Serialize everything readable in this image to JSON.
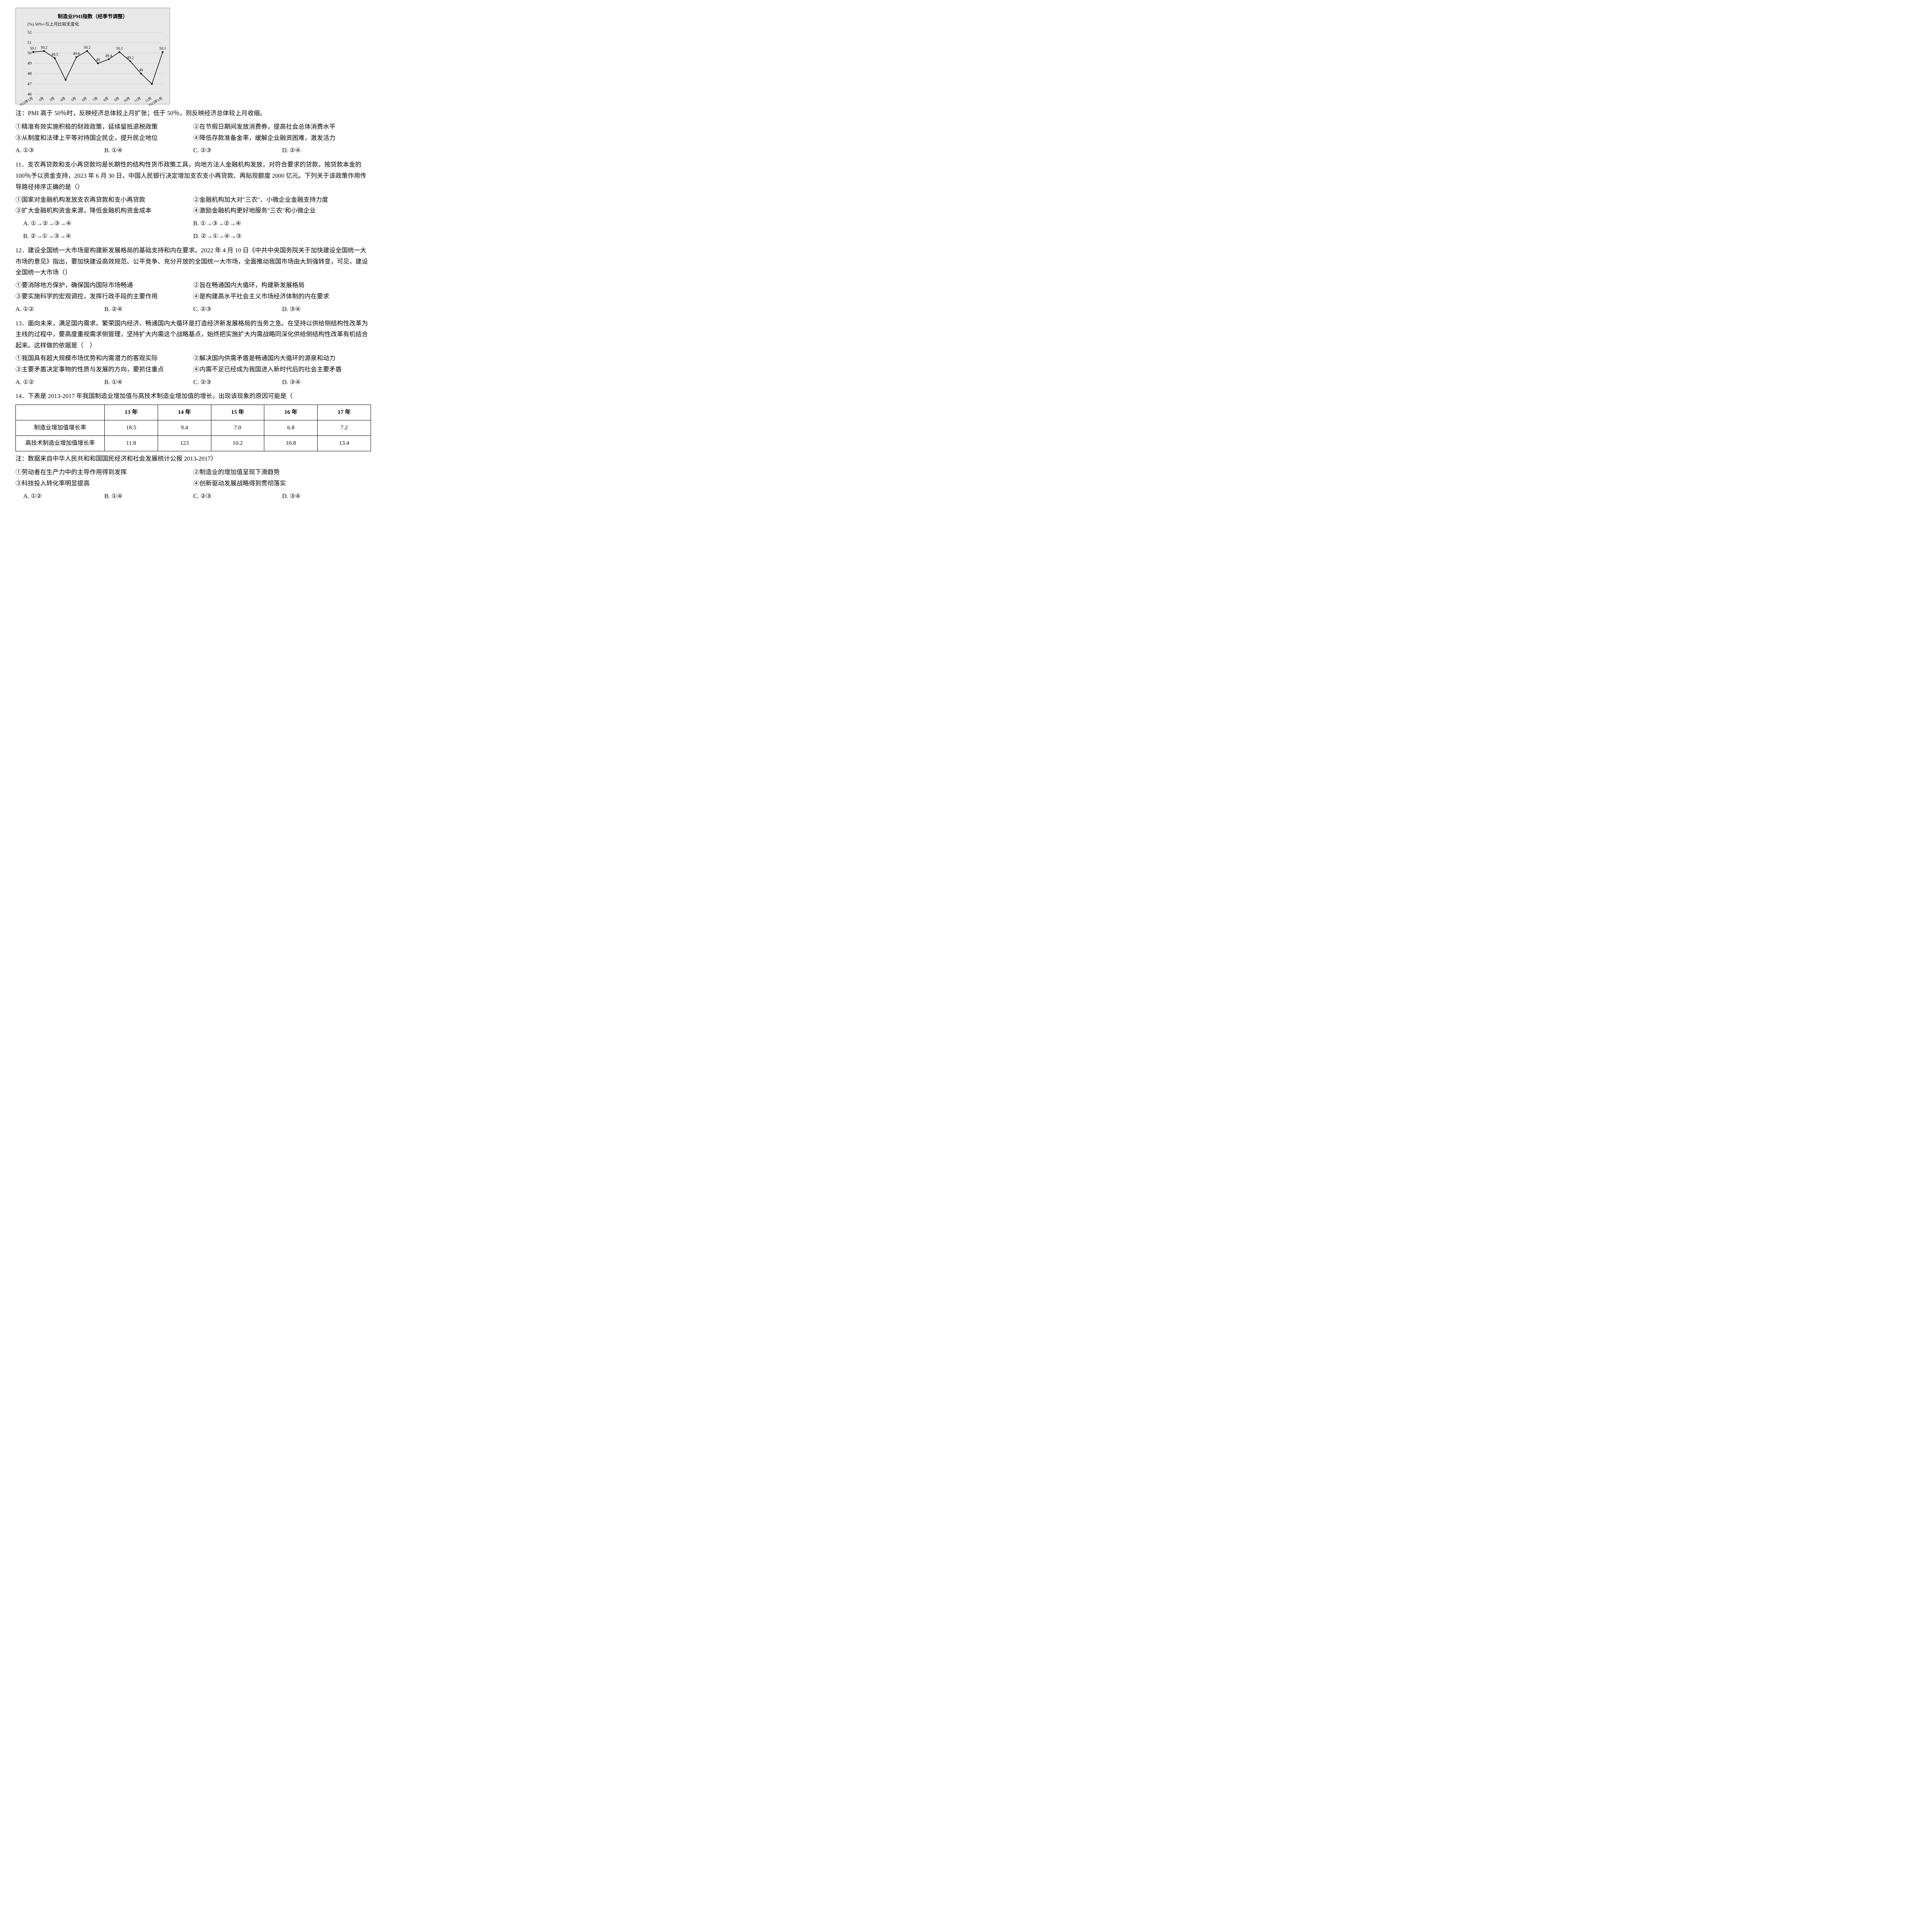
{
  "chart": {
    "title": "制造业PMI指数（经季节调整）",
    "subtitle": "(%) 50%=与上月比较无变化",
    "x_labels": [
      "2022年1月",
      "2月",
      "3月",
      "4月",
      "5月",
      "6月",
      "7月",
      "8月",
      "9月",
      "10月",
      "11月",
      "12月",
      "2023年1月"
    ],
    "y_ticks": [
      46,
      47,
      48,
      49,
      50,
      51,
      52
    ],
    "ylim": [
      46,
      52
    ],
    "values": [
      50.1,
      50.2,
      49.5,
      47.4,
      49.6,
      50.2,
      49.0,
      49.4,
      50.1,
      49.2,
      48.0,
      47.0,
      50.1
    ],
    "point_labels": [
      "50.1",
      "50.2",
      "49.5",
      "",
      "49.6",
      "50.2",
      "49",
      "49.4",
      "50.1",
      "49.2",
      "48",
      "",
      "50.1"
    ],
    "line_color": "#000000",
    "marker_color": "#000000",
    "background": "#e0e0e0",
    "grid_color": "#bdbdbd",
    "font_size": 11
  },
  "note10": "注：PMI 高于 50％时，反映经济总体较上月扩张；低于 50％，则反映经济总体较上月收缩。",
  "q10_points": {
    "p1": "①精准有效实施积极的财政政策，延续留抵退税政策",
    "p2": "②在节假日期间发放消费券，提高社会总体消费水平",
    "p3": "③从制度和法律上平等对持国企民企，提升民企地位",
    "p4": "④降低存款准备金率，缓解企业融资困难，激发活力"
  },
  "q10_opts": {
    "a": "A. ①③",
    "b": "B. ①④",
    "c": "C. ②③",
    "d": "D. ②④"
  },
  "q11_stem": "11．支农再贷款和支小再贷款均是长期性的结构性货币政策工具，向地方法人金融机构发放，对符合要求的贷款，按贷款本金的 100％予以资金支持，2023 年 6 月 30 日，中国人民银行决定增加支农支小再贷款、再贴现额度 2000 亿元。下列关于该政策作用传导路径排序正确的是（）",
  "q11_points": {
    "p1": "①国家对金融机构发放支农再贷款和支小再贷款",
    "p2": "②金融机构加大对\"三农\"、小微企业金融支持力度",
    "p3": "③扩大金融机构资金来源，降低金融机构资金成本",
    "p4": "④激励金融机构更好地服务\"三农\"和小微企业"
  },
  "q11_opts": {
    "a": "A. ①→②→③→④",
    "b": "B. ①→③→②→④",
    "c": "B. ②→①→③→④",
    "d": "D. ②→①→④→③"
  },
  "q12_stem": "12．建设全国统一大市场是构建新发展格局的基础支持和内在要求。2022 年 4 月 10 日《中共中央国务院关于加快建设全国统一大市场的意见》指出，要加快建设高效规范、公平竞争、充分开放的全国统一大市场，全面推动我国市场由大到强转变，可见，建设全国统一大市场（）",
  "q12_points": {
    "p1": "①要消除地方保护，确保国内国际市场畅通",
    "p2": "②旨在畅通国内大循环，构建新发展格局",
    "p3": "③要实施科学的宏观调控，发挥行政手段的主要作用",
    "p4": "④是构建高水平社会主义市场经济体制的内在要求"
  },
  "q12_opts": {
    "a": "A. ①②",
    "b": "B. ②④",
    "c": "C. ②③",
    "d": "D. ③④"
  },
  "q13_stem": "13．面向未来，满足国内需求、繁荣国内经济、畅通国内大循环是打造经济新发展格局的当务之急。在坚持以供给侧结构性改革为主线的过程中，要高度重视需求侧管理，坚持扩大内需这个战略基点，始终把实施扩大内需战略同深化供给侧结构性改革有机结合起来。这样做的依据是（　）",
  "q13_points": {
    "p1": "①我国具有超大规模市场优势和内需潜力的客观实际",
    "p2": "②解决国内供需矛盾是畅通国内大循环的源泉和动力",
    "p3": "③主要矛盾决定事物的性质与发展的方向，要抓住重点",
    "p4": "④内需不足已经成为我国进入新时代后的社会主要矛盾"
  },
  "q13_opts": {
    "a": "A. ①②",
    "b": "B. ①④",
    "c": "C. ②③",
    "d": "D. ③④"
  },
  "q14_stem": "14．下表是 2013-2017 年我国制造业增加值与高技术制造业增加值的增长，出现该现象的原因可能是（",
  "q14_table": {
    "headers": [
      "",
      "13 年",
      "14 年",
      "15 年",
      "16 年",
      "17 年"
    ],
    "rows": [
      [
        "制造业增加值增长率",
        "18.5",
        "9.4",
        "7.0",
        "6.8",
        "7.2"
      ],
      [
        "高技术制造业增加值增长率",
        "11.8",
        "123",
        "10.2",
        "10.8",
        "13.4"
      ]
    ]
  },
  "q14_note": "注：数据来自中华人民共和和国国民经济和社会发展统计公报 2013-2017）",
  "q14_points": {
    "p1": "①劳动者在生产力中的主导作用得到发挥",
    "p2": "②制造业的增加值呈现下滑趋势",
    "p3": "③科技投入转化率明显提高",
    "p4": "④创新驱动发展战略得到贯彻落实"
  },
  "q14_opts": {
    "a": "A. ①②",
    "b": "B. ①④",
    "c": "C. ②③",
    "d": "D. ③④"
  }
}
